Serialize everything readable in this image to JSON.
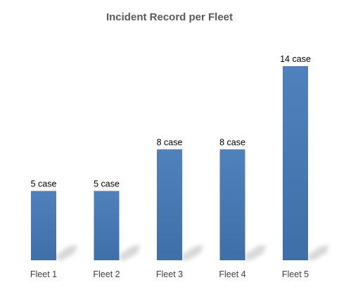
{
  "chart_data": {
    "type": "bar",
    "title": "Incident Record per Fleet",
    "categories": [
      "Fleet 1",
      "Fleet 2",
      "Fleet 3",
      "Fleet 4",
      "Fleet 5"
    ],
    "values": [
      5,
      5,
      8,
      8,
      14
    ],
    "data_labels": [
      "5 case",
      "5 case",
      "8 case",
      "8 case",
      "14 case"
    ],
    "ylim": [
      0,
      14
    ],
    "grid": false,
    "legend": "none",
    "bar_color": "#4a7ebb"
  }
}
